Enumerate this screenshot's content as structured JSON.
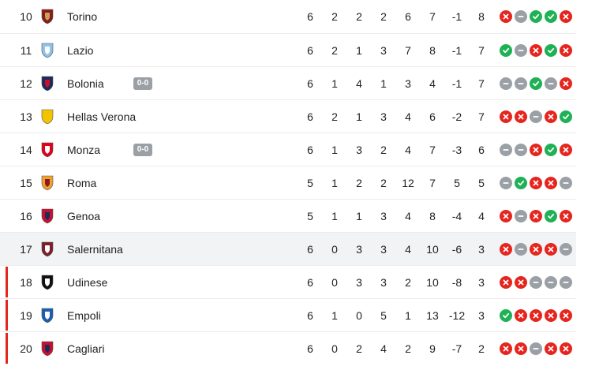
{
  "colors": {
    "loss": "#e5261f",
    "win": "#1fb155",
    "draw": "#9aa0a6",
    "relegation_marker": "#e5261f",
    "highlight_row": "#f2f3f4"
  },
  "rows": [
    {
      "rank": "10",
      "team": "Torino",
      "logo": "torino-crest",
      "live": "",
      "stats": [
        "6",
        "2",
        "2",
        "2",
        "6",
        "7",
        "-1",
        "8"
      ],
      "form": [
        "L",
        "D",
        "W",
        "W",
        "L"
      ]
    },
    {
      "rank": "11",
      "team": "Lazio",
      "logo": "lazio-crest",
      "live": "",
      "stats": [
        "6",
        "2",
        "1",
        "3",
        "7",
        "8",
        "-1",
        "7"
      ],
      "form": [
        "W",
        "D",
        "L",
        "W",
        "L"
      ]
    },
    {
      "rank": "12",
      "team": "Bolonia",
      "logo": "bologna-crest",
      "live": "0-0",
      "stats": [
        "6",
        "1",
        "4",
        "1",
        "3",
        "4",
        "-1",
        "7"
      ],
      "form": [
        "D",
        "D",
        "W",
        "D",
        "L"
      ]
    },
    {
      "rank": "13",
      "team": "Hellas Verona",
      "logo": "verona-crest",
      "live": "",
      "stats": [
        "6",
        "2",
        "1",
        "3",
        "4",
        "6",
        "-2",
        "7"
      ],
      "form": [
        "L",
        "L",
        "D",
        "L",
        "W"
      ]
    },
    {
      "rank": "14",
      "team": "Monza",
      "logo": "monza-crest",
      "live": "0-0",
      "stats": [
        "6",
        "1",
        "3",
        "2",
        "4",
        "7",
        "-3",
        "6"
      ],
      "form": [
        "D",
        "D",
        "L",
        "W",
        "L"
      ]
    },
    {
      "rank": "15",
      "team": "Roma",
      "logo": "roma-crest",
      "live": "",
      "stats": [
        "5",
        "1",
        "2",
        "2",
        "12",
        "7",
        "5",
        "5"
      ],
      "form": [
        "D",
        "W",
        "L",
        "L",
        "D"
      ]
    },
    {
      "rank": "16",
      "team": "Genoa",
      "logo": "genoa-crest",
      "live": "",
      "stats": [
        "5",
        "1",
        "1",
        "3",
        "4",
        "8",
        "-4",
        "4"
      ],
      "form": [
        "L",
        "D",
        "L",
        "W",
        "L"
      ]
    },
    {
      "rank": "17",
      "team": "Salernitana",
      "logo": "salernitana-crest",
      "live": "",
      "stats": [
        "6",
        "0",
        "3",
        "3",
        "4",
        "10",
        "-6",
        "3"
      ],
      "form": [
        "L",
        "D",
        "L",
        "L",
        "D"
      ],
      "highlight": true
    },
    {
      "rank": "18",
      "team": "Udinese",
      "logo": "udinese-crest",
      "live": "",
      "stats": [
        "6",
        "0",
        "3",
        "3",
        "2",
        "10",
        "-8",
        "3"
      ],
      "form": [
        "L",
        "L",
        "D",
        "D",
        "D"
      ],
      "relegation": true
    },
    {
      "rank": "19",
      "team": "Empoli",
      "logo": "empoli-crest",
      "live": "",
      "stats": [
        "6",
        "1",
        "0",
        "5",
        "1",
        "13",
        "-12",
        "3"
      ],
      "form": [
        "W",
        "L",
        "L",
        "L",
        "L"
      ],
      "relegation": true
    },
    {
      "rank": "20",
      "team": "Cagliari",
      "logo": "cagliari-crest",
      "live": "",
      "stats": [
        "6",
        "0",
        "2",
        "4",
        "2",
        "9",
        "-7",
        "2"
      ],
      "form": [
        "L",
        "L",
        "D",
        "L",
        "L"
      ],
      "relegation": true
    }
  ]
}
